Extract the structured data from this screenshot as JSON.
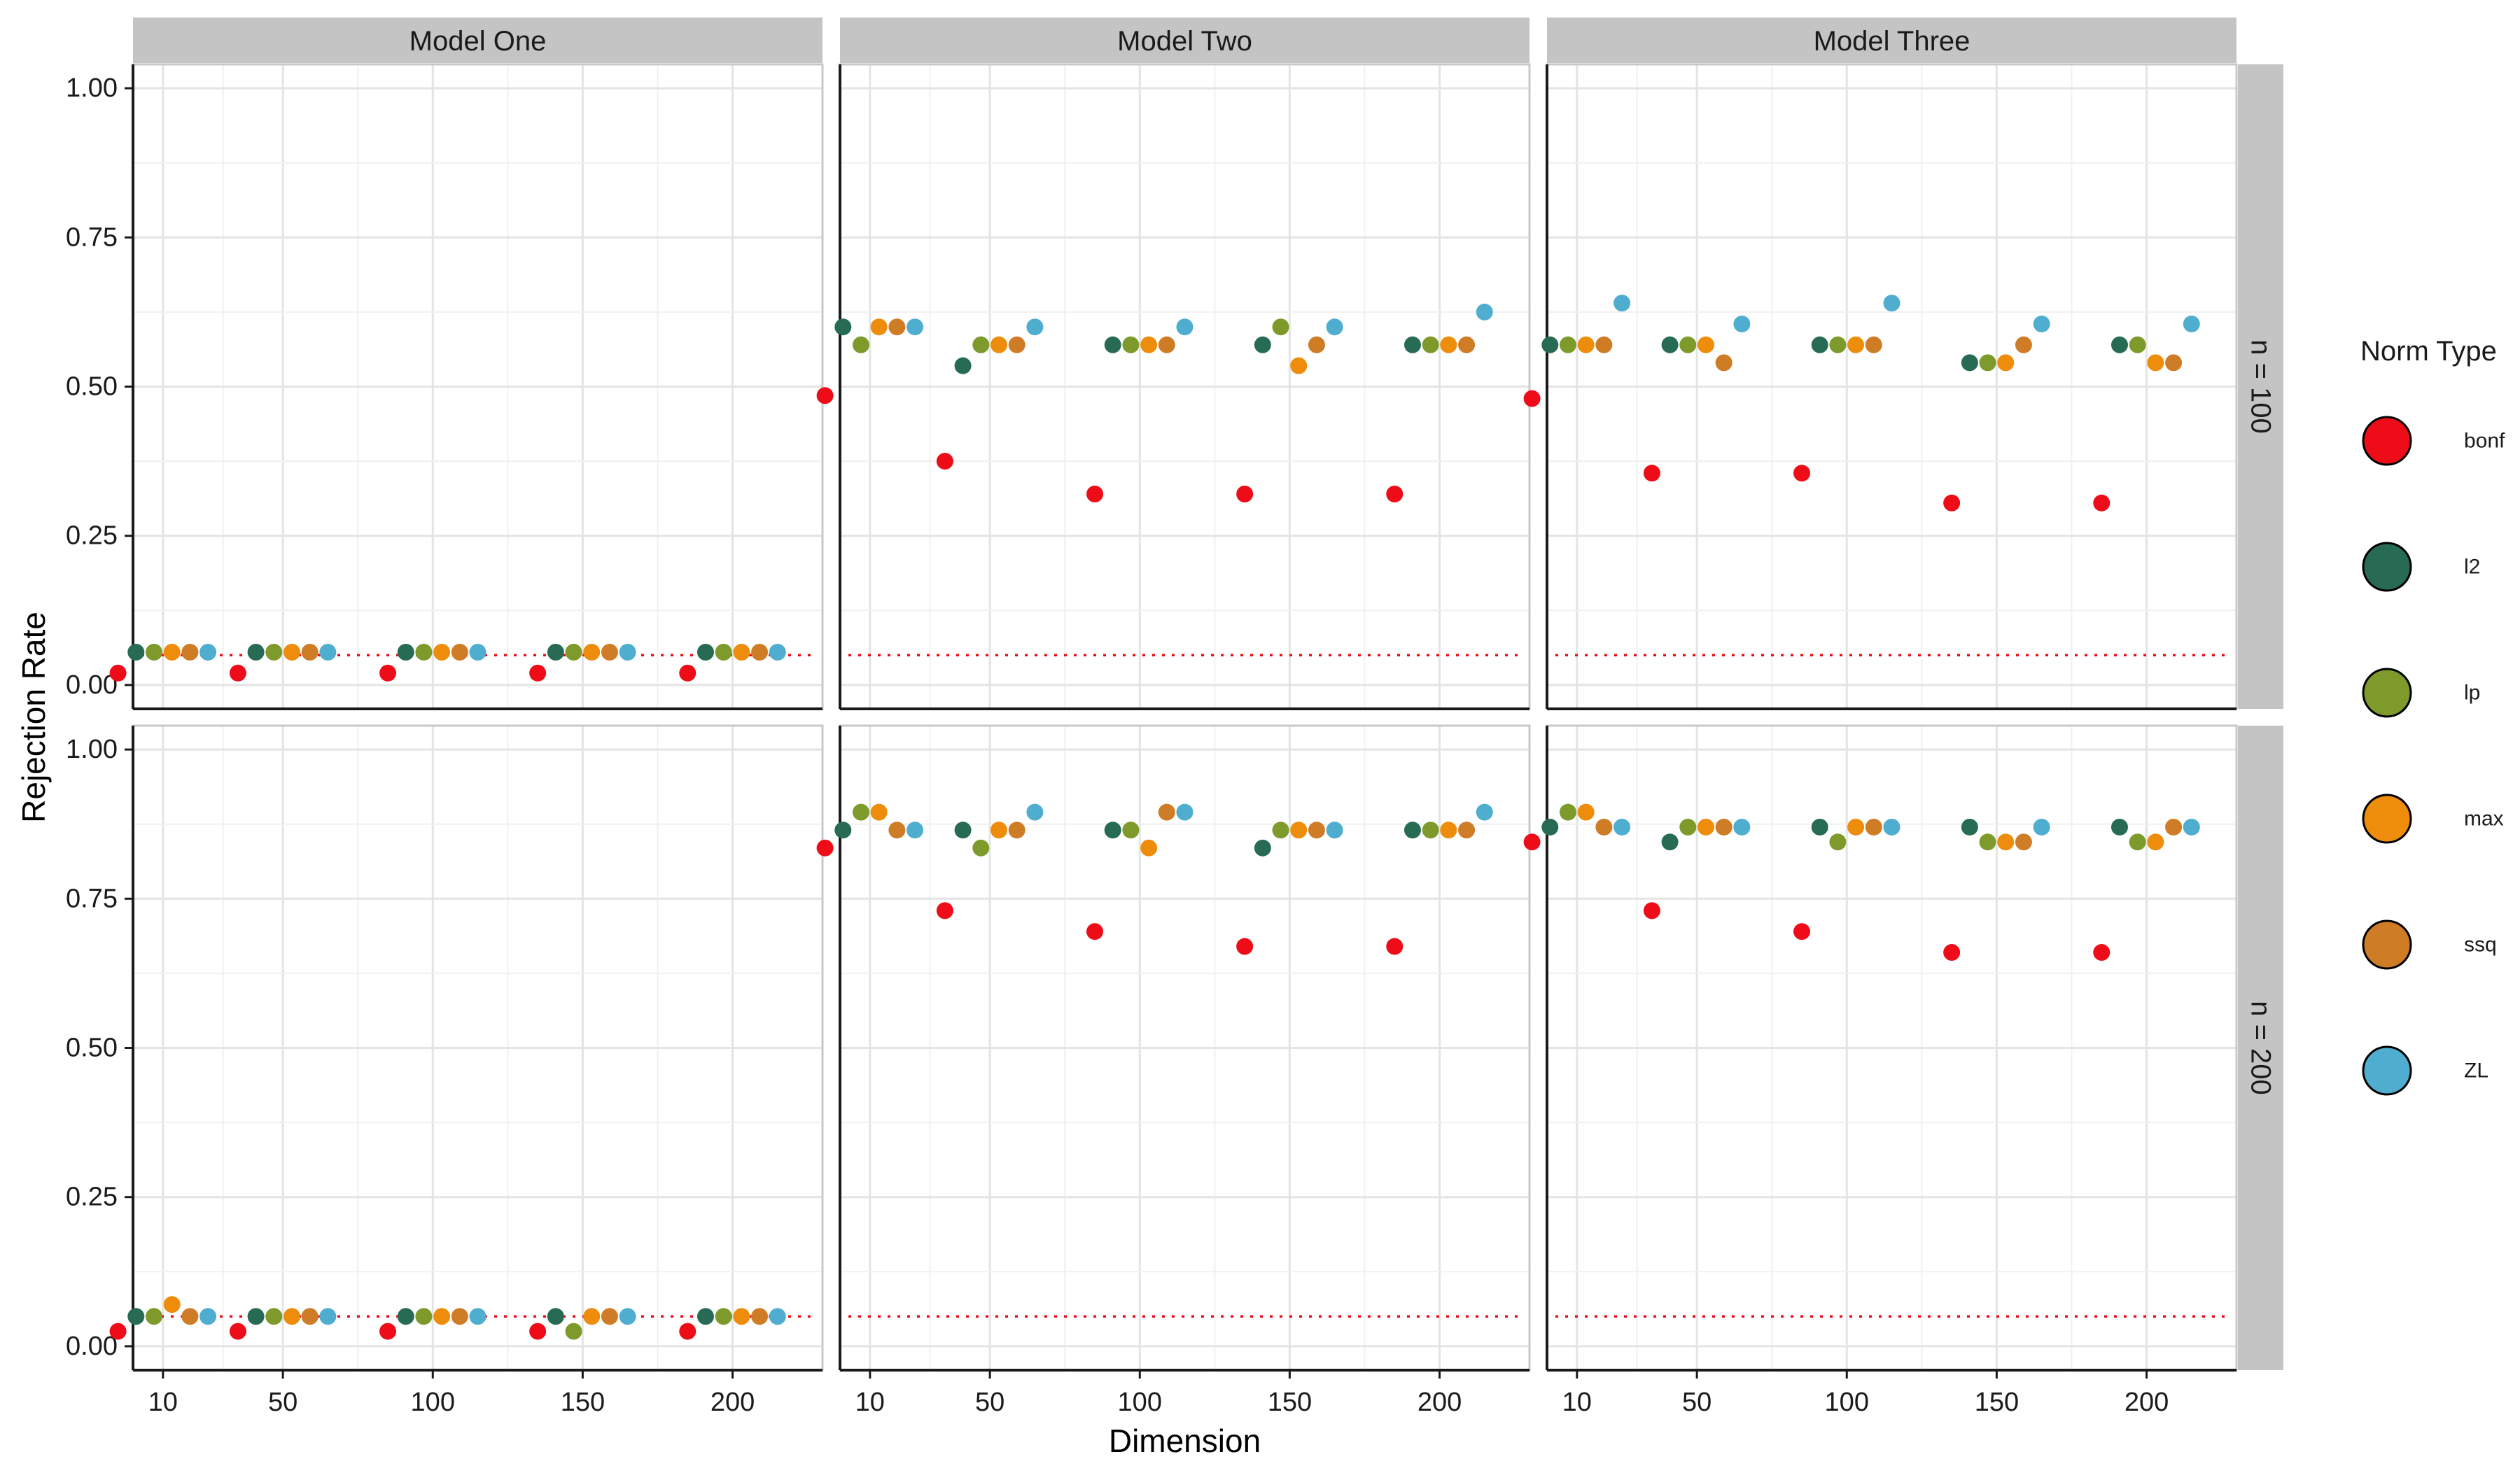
{
  "chart_data": {
    "type": "scatter",
    "facet_cols": [
      "Model One",
      "Model Two",
      "Model Three"
    ],
    "facet_rows": [
      "n = 100",
      "n = 200"
    ],
    "categories": [
      "10",
      "50",
      "100",
      "150",
      "200"
    ],
    "xlabel": "Dimension",
    "ylabel": "Rejection Rate",
    "ylim": [
      0,
      1
    ],
    "y_ticks": [
      "0.00",
      "0.25",
      "0.50",
      "0.75",
      "1.00"
    ],
    "reference_line": 0.05,
    "legend": {
      "title": "Norm Type",
      "position": "right",
      "entries": [
        "bonf",
        "l2",
        "lp",
        "max",
        "ssq",
        "ZL"
      ]
    },
    "series_colors": {
      "bonf": "#ee0c18",
      "l2": "#276b54",
      "lp": "#7d9a2b",
      "max": "#ee8c0c",
      "ssq": "#cf7c26",
      "ZL": "#4faed0"
    },
    "panels": [
      {
        "model": "Model One",
        "n": "n = 100",
        "values": {
          "bonf": [
            0.02,
            0.02,
            0.02,
            0.02,
            0.02
          ],
          "l2": [
            0.055,
            0.055,
            0.055,
            0.055,
            0.055
          ],
          "lp": [
            0.055,
            0.055,
            0.055,
            0.055,
            0.055
          ],
          "max": [
            0.055,
            0.055,
            0.055,
            0.055,
            0.055
          ],
          "ssq": [
            0.055,
            0.055,
            0.055,
            0.055,
            0.055
          ],
          "ZL": [
            0.055,
            0.055,
            0.055,
            0.055,
            0.055
          ]
        }
      },
      {
        "model": "Model Two",
        "n": "n = 100",
        "values": {
          "bonf": [
            0.485,
            0.375,
            0.32,
            0.32,
            0.32
          ],
          "l2": [
            0.6,
            0.535,
            0.57,
            0.57,
            0.57
          ],
          "lp": [
            0.57,
            0.57,
            0.57,
            0.6,
            0.57
          ],
          "max": [
            0.6,
            0.57,
            0.57,
            0.535,
            0.57
          ],
          "ssq": [
            0.6,
            0.57,
            0.57,
            0.57,
            0.57
          ],
          "ZL": [
            0.6,
            0.6,
            0.6,
            0.6,
            0.625
          ]
        }
      },
      {
        "model": "Model Three",
        "n": "n = 100",
        "values": {
          "bonf": [
            0.48,
            0.355,
            0.355,
            0.305,
            0.305
          ],
          "l2": [
            0.57,
            0.57,
            0.57,
            0.54,
            0.57
          ],
          "lp": [
            0.57,
            0.57,
            0.57,
            0.54,
            0.57
          ],
          "max": [
            0.57,
            0.57,
            0.57,
            0.54,
            0.54
          ],
          "ssq": [
            0.57,
            0.54,
            0.57,
            0.57,
            0.54
          ],
          "ZL": [
            0.64,
            0.605,
            0.64,
            0.605,
            0.605
          ]
        }
      },
      {
        "model": "Model One",
        "n": "n = 200",
        "values": {
          "bonf": [
            0.025,
            0.025,
            0.025,
            0.025,
            0.025
          ],
          "l2": [
            0.05,
            0.05,
            0.05,
            0.05,
            0.05
          ],
          "lp": [
            0.05,
            0.05,
            0.05,
            0.025,
            0.05
          ],
          "max": [
            0.07,
            0.05,
            0.05,
            0.05,
            0.05
          ],
          "ssq": [
            0.05,
            0.05,
            0.05,
            0.05,
            0.05
          ],
          "ZL": [
            0.05,
            0.05,
            0.05,
            0.05,
            0.05
          ]
        }
      },
      {
        "model": "Model Two",
        "n": "n = 200",
        "values": {
          "bonf": [
            0.835,
            0.73,
            0.695,
            0.67,
            0.67
          ],
          "l2": [
            0.865,
            0.865,
            0.865,
            0.835,
            0.865
          ],
          "lp": [
            0.895,
            0.835,
            0.865,
            0.865,
            0.865
          ],
          "max": [
            0.895,
            0.865,
            0.835,
            0.865,
            0.865
          ],
          "ssq": [
            0.865,
            0.865,
            0.895,
            0.865,
            0.865
          ],
          "ZL": [
            0.865,
            0.895,
            0.895,
            0.865,
            0.895
          ]
        }
      },
      {
        "model": "Model Three",
        "n": "n = 200",
        "values": {
          "bonf": [
            0.845,
            0.73,
            0.695,
            0.66,
            0.66
          ],
          "l2": [
            0.87,
            0.845,
            0.87,
            0.87,
            0.87
          ],
          "lp": [
            0.895,
            0.87,
            0.845,
            0.845,
            0.845
          ],
          "max": [
            0.895,
            0.87,
            0.87,
            0.845,
            0.845
          ],
          "ssq": [
            0.87,
            0.87,
            0.87,
            0.845,
            0.87
          ],
          "ZL": [
            0.87,
            0.87,
            0.87,
            0.87,
            0.87
          ]
        }
      }
    ]
  }
}
